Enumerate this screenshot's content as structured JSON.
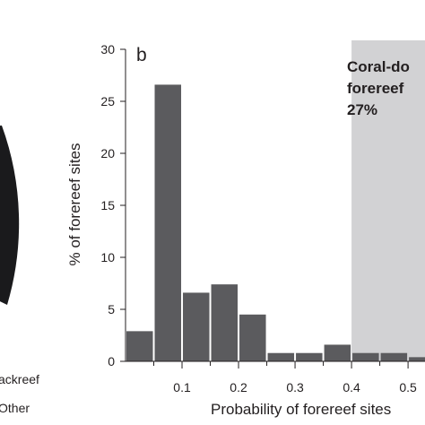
{
  "left_panel": {
    "legend": [
      {
        "label": "Backreef",
        "display": "ackreef"
      },
      {
        "label": "Other",
        "display": "Other"
      }
    ],
    "pie_color": "#1a1a1c"
  },
  "chart_data": {
    "type": "bar",
    "panel_label": "b",
    "title": "",
    "xlabel": "Probability of forereef sites",
    "ylabel": "% of forereef sites",
    "x_ticks": [
      0.1,
      0.2,
      0.3,
      0.4,
      0.5
    ],
    "x_tick_labels": [
      "0.1",
      "0.2",
      "0.3",
      "0.4",
      "0.5"
    ],
    "xlim": [
      0.0,
      0.53
    ],
    "ylim": [
      0,
      30
    ],
    "y_ticks": [
      0,
      5,
      10,
      15,
      20,
      25,
      30
    ],
    "y_tick_labels": [
      "0",
      "5",
      "10",
      "15",
      "20",
      "25",
      "30"
    ],
    "bin_width": 0.05,
    "bins": [
      {
        "start": 0.0,
        "value": 2.9
      },
      {
        "start": 0.05,
        "value": 26.6
      },
      {
        "start": 0.1,
        "value": 6.6
      },
      {
        "start": 0.15,
        "value": 7.4
      },
      {
        "start": 0.2,
        "value": 4.5
      },
      {
        "start": 0.25,
        "value": 0.8
      },
      {
        "start": 0.3,
        "value": 0.8
      },
      {
        "start": 0.35,
        "value": 1.6
      },
      {
        "start": 0.4,
        "value": 0.8
      },
      {
        "start": 0.45,
        "value": 0.8
      },
      {
        "start": 0.5,
        "value": 0.4
      }
    ],
    "shaded_region": {
      "x_start": 0.4,
      "x_end": 0.53,
      "label_lines": [
        "Coral-do",
        "forereef",
        "27%"
      ]
    },
    "bar_color": "#5b5b5e",
    "shade_color": "#d2d2d4",
    "grid": false,
    "legend": "none"
  }
}
